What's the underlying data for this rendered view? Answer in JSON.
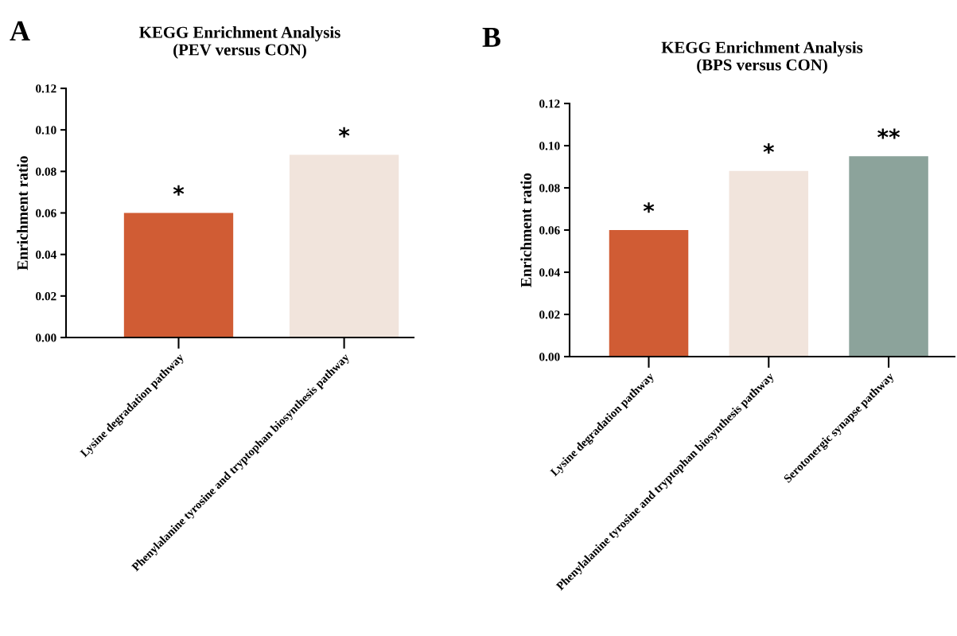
{
  "chart_data": [
    {
      "type": "bar",
      "title": "KEGG Enrichment Analysis\n(PEV versus CON)",
      "ylabel": "Enrichment ratio",
      "categories": [
        "Lysine degradation pathway",
        "Phenylalanine tyrosine and tryptophan biosynthesis pathway"
      ],
      "values": [
        0.06,
        0.088
      ],
      "colors": [
        "#d05c34",
        "#f1e4dc"
      ],
      "ylim": [
        0,
        0.12
      ],
      "yticks": [
        {
          "value": 0,
          "label": "0.00"
        },
        {
          "value": 0.02,
          "label": "0.02"
        },
        {
          "value": 0.04,
          "label": "0.04"
        },
        {
          "value": 0.06,
          "label": "0.06"
        },
        {
          "value": 0.08,
          "label": "0.08"
        },
        {
          "value": 0.1,
          "label": "0.10"
        },
        {
          "value": 0.12,
          "label": "0.12"
        }
      ],
      "grid": false,
      "legend": false,
      "annotations": [
        "A",
        {
          "text": "*",
          "x": "Lysine degradation pathway",
          "y": 0.06
        },
        {
          "text": "*",
          "x": "Phenylalanine tyrosine and tryptophan biosynthesis pathway",
          "y": 0.088
        }
      ]
    },
    {
      "type": "bar",
      "title": "KEGG Enrichment Analysis\n(BPS versus CON)",
      "ylabel": "Enrichment ratio",
      "categories": [
        "Lysine degradation pathway",
        "Phenylalanine tyrosine and tryptophan biosynthesis pathway",
        "Serotonergic synapse pathway"
      ],
      "values": [
        0.06,
        0.088,
        0.095
      ],
      "colors": [
        "#d05c34",
        "#f1e4dc",
        "#8ca39b"
      ],
      "ylim": [
        0,
        0.12
      ],
      "yticks": [
        {
          "value": 0,
          "label": "0.00"
        },
        {
          "value": 0.02,
          "label": "0.02"
        },
        {
          "value": 0.04,
          "label": "0.04"
        },
        {
          "value": 0.06,
          "label": "0.06"
        },
        {
          "value": 0.08,
          "label": "0.08"
        },
        {
          "value": 0.1,
          "label": "0.10"
        },
        {
          "value": 0.12,
          "label": "0.12"
        }
      ],
      "grid": false,
      "legend": false,
      "annotations": [
        "B",
        {
          "text": "*",
          "x": "Lysine degradation pathway",
          "y": 0.06
        },
        {
          "text": "*",
          "x": "Phenylalanine tyrosine and tryptophan biosynthesis pathway",
          "y": 0.088
        },
        {
          "text": "**",
          "x": "Serotonergic synapse pathway",
          "y": 0.095
        }
      ]
    }
  ]
}
